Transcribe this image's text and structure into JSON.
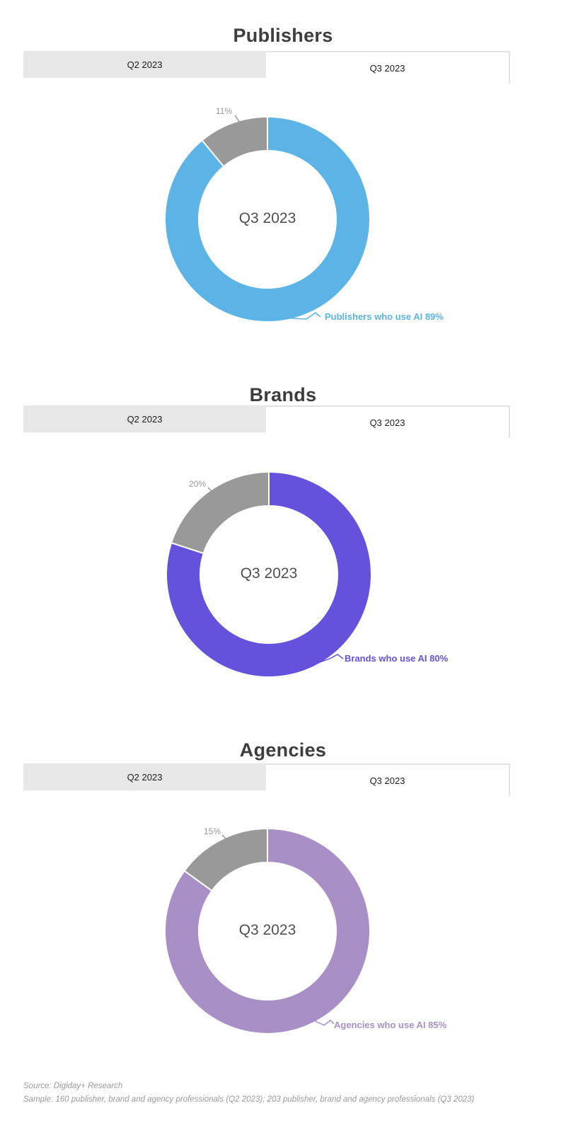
{
  "colors": {
    "page_bg": "#ffffff",
    "tab_bg": "#e7e7e7",
    "tab_border": "#e3e3e3",
    "title_color": "#3d3d3d",
    "center_label_color": "#4f4f51",
    "pct_color": "#999999",
    "footer_color": "#9a9a9a"
  },
  "chart_data": [
    {
      "type": "pie",
      "variant": "donut",
      "title": "Publishers",
      "tabs": [
        {
          "label": "Q2 2023",
          "active": false
        },
        {
          "label": "Q3 2023",
          "active": true
        }
      ],
      "center_label": "Q3 2023",
      "legend_position": "callout",
      "slices": [
        {
          "label": "Publishers who use AI",
          "value": 89,
          "color": "#5bb4e5",
          "callout": "Publishers who use AI 89%"
        },
        {
          "label": "11%",
          "value": 11,
          "color": "#999999",
          "callout": "11%"
        }
      ]
    },
    {
      "type": "pie",
      "variant": "donut",
      "title": "Brands",
      "tabs": [
        {
          "label": "Q2 2023",
          "active": false
        },
        {
          "label": "Q3 2023",
          "active": true
        }
      ],
      "center_label": "Q3 2023",
      "legend_position": "callout",
      "slices": [
        {
          "label": "Brands who use AI",
          "value": 80,
          "color": "#6552dc",
          "callout": "Brands who use AI 80%"
        },
        {
          "label": "20%",
          "value": 20,
          "color": "#999999",
          "callout": "20%"
        }
      ]
    },
    {
      "type": "pie",
      "variant": "donut",
      "title": "Agencies",
      "tabs": [
        {
          "label": "Q2 2023",
          "active": false
        },
        {
          "label": "Q3 2023",
          "active": true
        }
      ],
      "center_label": "Q3 2023",
      "legend_position": "callout",
      "slices": [
        {
          "label": "Agencies who use AI",
          "value": 85,
          "color": "#a88fc6",
          "callout": "Agencies who use AI 85%"
        },
        {
          "label": "15%",
          "value": 15,
          "color": "#999999",
          "callout": "15%"
        }
      ]
    }
  ],
  "footer": {
    "source": "Source: Digiday+ Research",
    "sample": "Sample: 160 publisher, brand and agency professionals (Q2 2023); 203 publisher, brand and agency professionals (Q3 2023)"
  }
}
